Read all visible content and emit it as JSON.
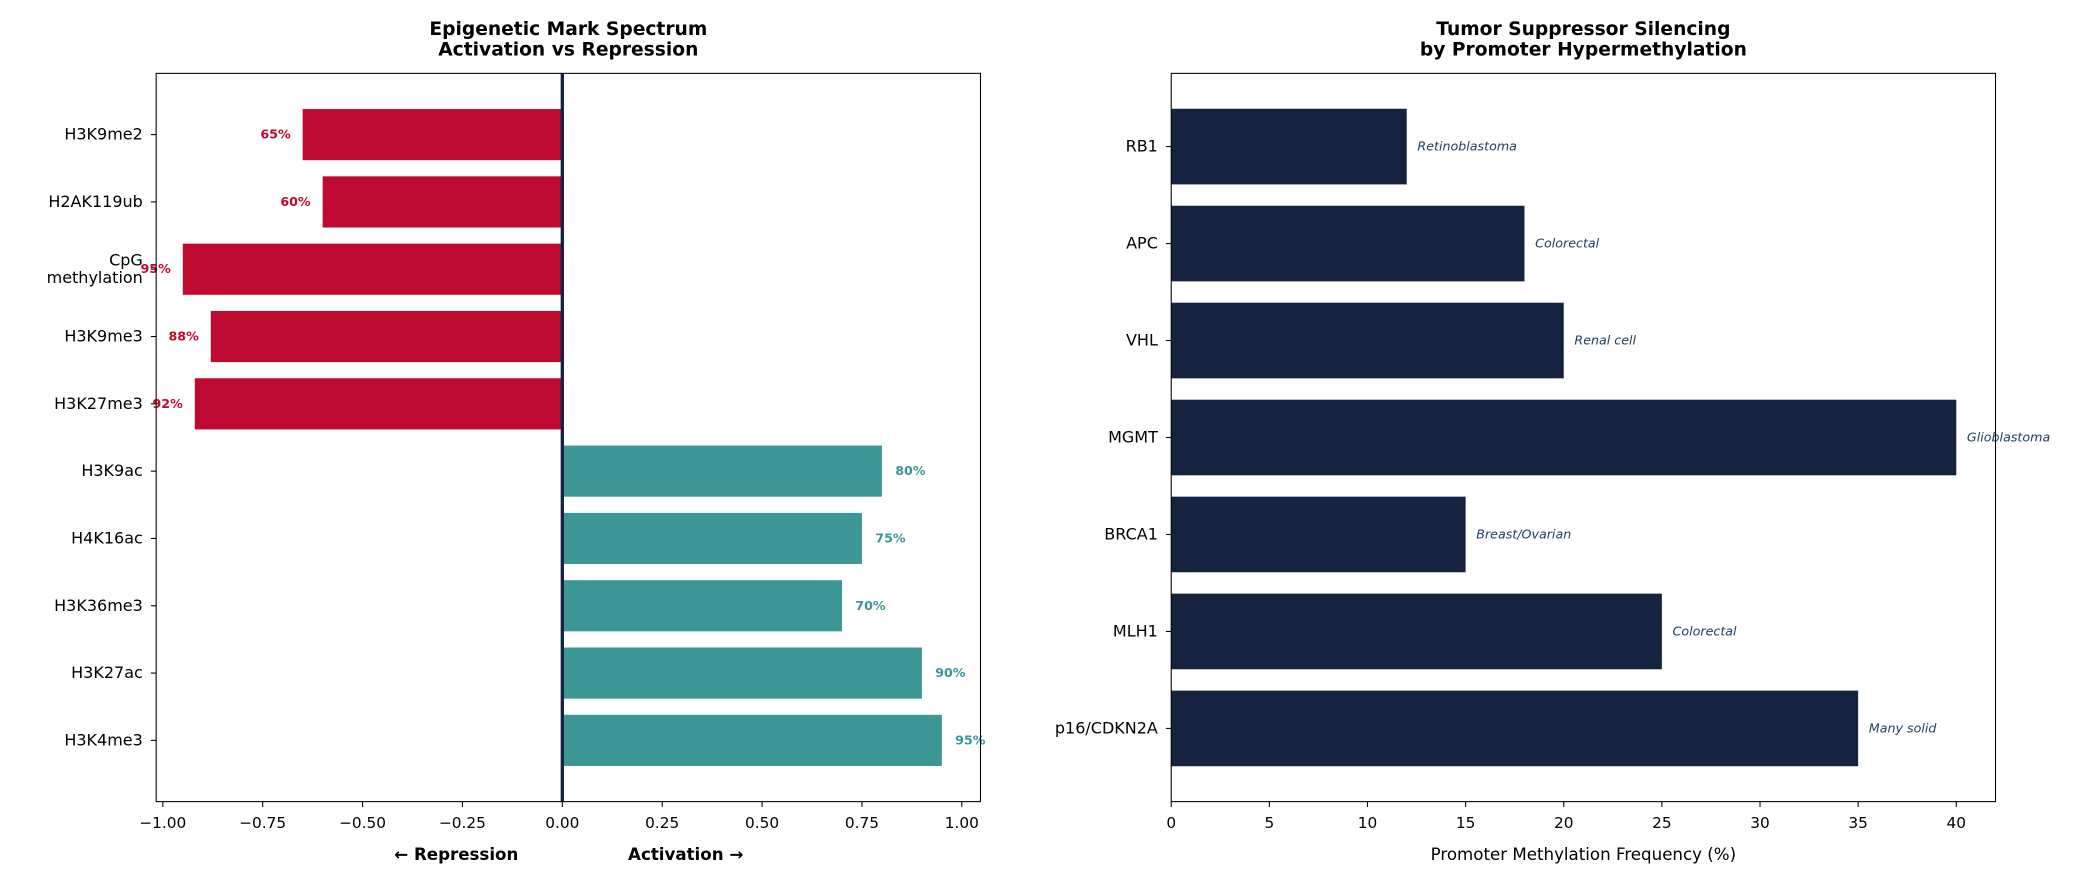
{
  "chart_data": [
    {
      "type": "hbar",
      "title": "Epigenetic Mark Spectrum\nActivation vs Repression",
      "xlabel_left": "← Repression",
      "xlabel_right": "Activation →",
      "categories": [
        "H3K9me2",
        "H2AK119ub",
        "CpG\nmethylation",
        "H3K9me3",
        "H3K27me3",
        "H3K9ac",
        "H4K16ac",
        "H3K36me3",
        "H3K27ac",
        "H3K4me3"
      ],
      "values": [
        -0.65,
        -0.6,
        -0.95,
        -0.88,
        -0.92,
        0.8,
        0.75,
        0.7,
        0.9,
        0.95
      ],
      "value_labels": [
        "65%",
        "60%",
        "95%",
        "88%",
        "92%",
        "80%",
        "75%",
        "70%",
        "90%",
        "95%"
      ],
      "negative_color": "#be0a2f",
      "positive_color": "#3d9696",
      "zero_line_color": "#162340",
      "xlim": [
        -1.0167,
        1.0467
      ],
      "xticks": [
        {
          "value": -1.0,
          "label": "−1.00"
        },
        {
          "value": -0.75,
          "label": "−0.75"
        },
        {
          "value": -0.5,
          "label": "−0.50"
        },
        {
          "value": -0.25,
          "label": "−0.25"
        },
        {
          "value": 0,
          "label": "0.00"
        },
        {
          "value": 0.25,
          "label": "0.25"
        },
        {
          "value": 0.5,
          "label": "0.50"
        },
        {
          "value": 0.75,
          "label": "0.75"
        },
        {
          "value": 1.0,
          "label": "1.00"
        }
      ]
    },
    {
      "type": "hbar",
      "title": "Tumor Suppressor Silencing\nby Promoter Hypermethylation",
      "xlabel": "Promoter Methylation Frequency (%)",
      "categories": [
        "RB1",
        "APC",
        "VHL",
        "MGMT",
        "BRCA1",
        "MLH1",
        "p16/CDKN2A"
      ],
      "values": [
        12,
        18,
        20,
        40,
        15,
        25,
        35
      ],
      "annotations": [
        "Retinoblastoma",
        "Colorectal",
        "Renal cell",
        "Glioblastoma",
        "Breast/Ovarian",
        "Colorectal",
        "Many solid"
      ],
      "color": "#162340",
      "annotation_color": "#1f3d5c",
      "xlim": [
        0,
        42
      ],
      "xticks": [
        0,
        5,
        10,
        15,
        20,
        25,
        30,
        35,
        40
      ]
    }
  ]
}
